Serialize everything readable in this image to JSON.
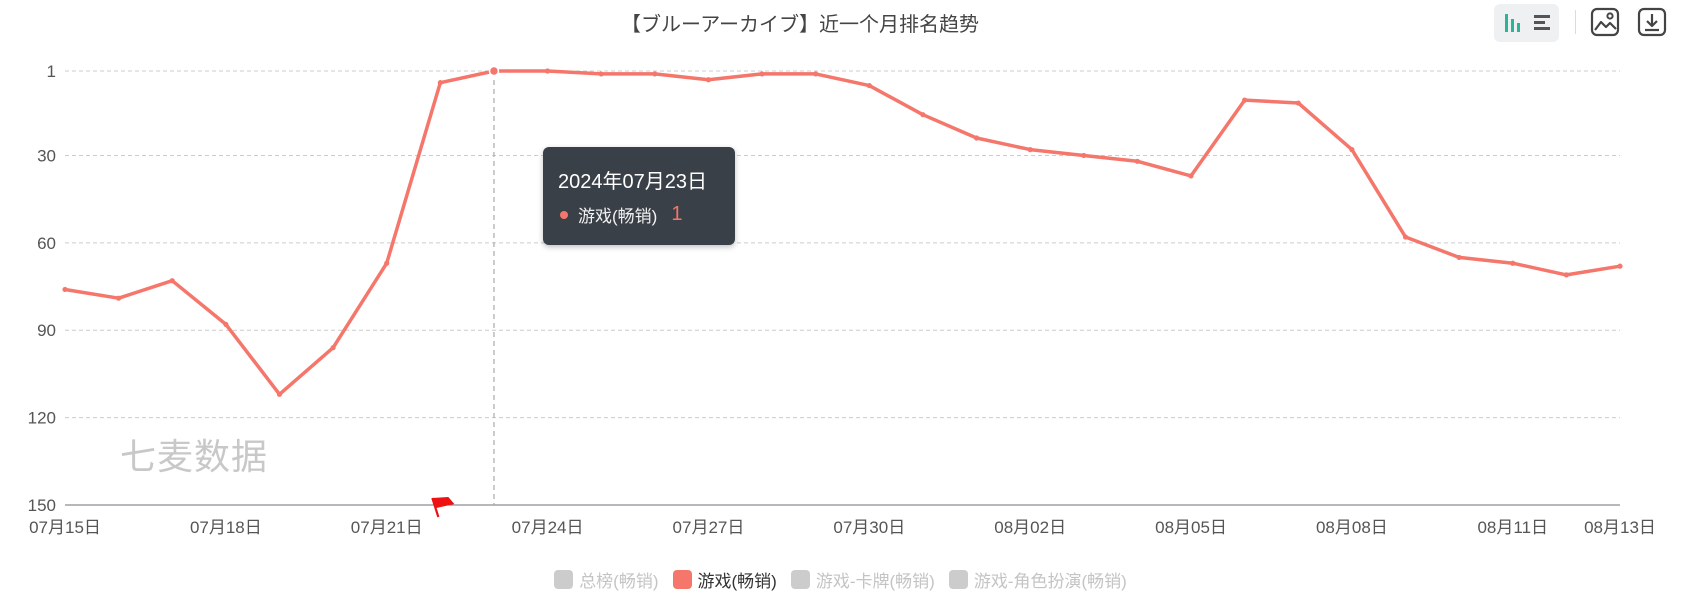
{
  "title": "【ブルーアーカイブ】近一个月排名趋势",
  "toolbar": {
    "view_buttons": [
      {
        "icon": "column-chart-icon",
        "active": true
      },
      {
        "icon": "bar-list-icon",
        "active": false
      }
    ],
    "actions": [
      {
        "icon": "save-image-icon"
      },
      {
        "icon": "download-icon"
      }
    ]
  },
  "watermark": "七麦数据",
  "tooltip": {
    "date": "2024年07月23日",
    "series": "游戏(畅销)",
    "value": "1"
  },
  "legend": [
    {
      "label": "总榜(畅销)",
      "active": false
    },
    {
      "label": "游戏(畅销)",
      "active": true
    },
    {
      "label": "游戏-卡牌(畅销)",
      "active": false
    },
    {
      "label": "游戏-角色扮演(畅销)",
      "active": false
    }
  ],
  "colors": {
    "series": "#f5766b",
    "inactive": "#cccccc",
    "tooltip_bg": "#3a4048",
    "grid": "#cccccc"
  },
  "chart_data": {
    "type": "line",
    "title": "【ブルーアーカイブ】近一个月排名趋势",
    "y_inverted": true,
    "ylim": [
      150,
      1
    ],
    "y_ticks": [
      1,
      30,
      60,
      90,
      120,
      150
    ],
    "x_tick_labels": [
      "07月15日",
      "07月18日",
      "07月21日",
      "07月24日",
      "07月27日",
      "07月30日",
      "08月02日",
      "08月05日",
      "08月08日",
      "08月11日",
      "08月13日"
    ],
    "x": [
      "07月15日",
      "07月16日",
      "07月17日",
      "07月18日",
      "07月19日",
      "07月20日",
      "07月21日",
      "07月22日",
      "07月23日",
      "07月24日",
      "07月25日",
      "07月26日",
      "07月27日",
      "07月28日",
      "07月29日",
      "07月30日",
      "07月31日",
      "08月01日",
      "08月02日",
      "08月03日",
      "08月04日",
      "08月05日",
      "08月06日",
      "08月07日",
      "08月08日",
      "08月09日",
      "08月10日",
      "08月11日",
      "08月12日",
      "08月13日"
    ],
    "series": [
      {
        "name": "游戏(畅销)",
        "values": [
          76,
          79,
          73,
          88,
          112,
          96,
          67,
          5,
          1,
          1,
          2,
          2,
          4,
          2,
          2,
          6,
          16,
          24,
          28,
          30,
          32,
          37,
          11,
          12,
          28,
          58,
          65,
          67,
          71,
          68
        ]
      }
    ],
    "annotation": {
      "type": "flag",
      "at": "07月22日",
      "color": "#ee1111"
    },
    "grid": true,
    "legend_position": "bottom"
  }
}
